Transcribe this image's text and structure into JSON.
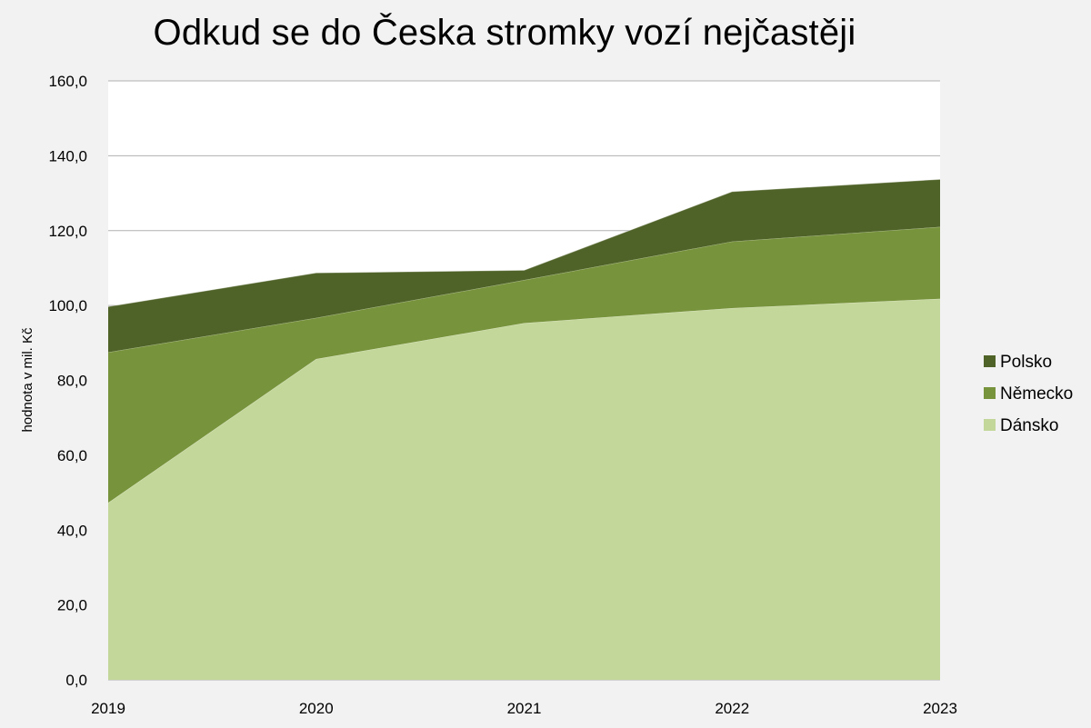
{
  "chart_data": {
    "type": "area",
    "stacked": true,
    "title": "Odkud se do Česka stromky vozí nejčastěji",
    "xlabel": "",
    "ylabel": "hodnota v mil. Kč",
    "x": [
      "2019",
      "2020",
      "2021",
      "2022",
      "2023"
    ],
    "ylim": [
      0,
      160
    ],
    "yticks": [
      "0,0",
      "20,0",
      "40,0",
      "60,0",
      "80,0",
      "100,0",
      "120,0",
      "140,0",
      "160,0"
    ],
    "grid": true,
    "legend_position": "right",
    "series": [
      {
        "name": "Dánsko",
        "color": "#c4d79b",
        "values": [
          47.3,
          85.7,
          95.3,
          99.3,
          101.8
        ]
      },
      {
        "name": "Německo",
        "color": "#77933c",
        "values": [
          40.2,
          11.0,
          11.5,
          17.8,
          19.2
        ]
      },
      {
        "name": "Polsko",
        "color": "#4f6228",
        "values": [
          12.2,
          12.0,
          2.6,
          13.3,
          12.7
        ]
      }
    ]
  }
}
